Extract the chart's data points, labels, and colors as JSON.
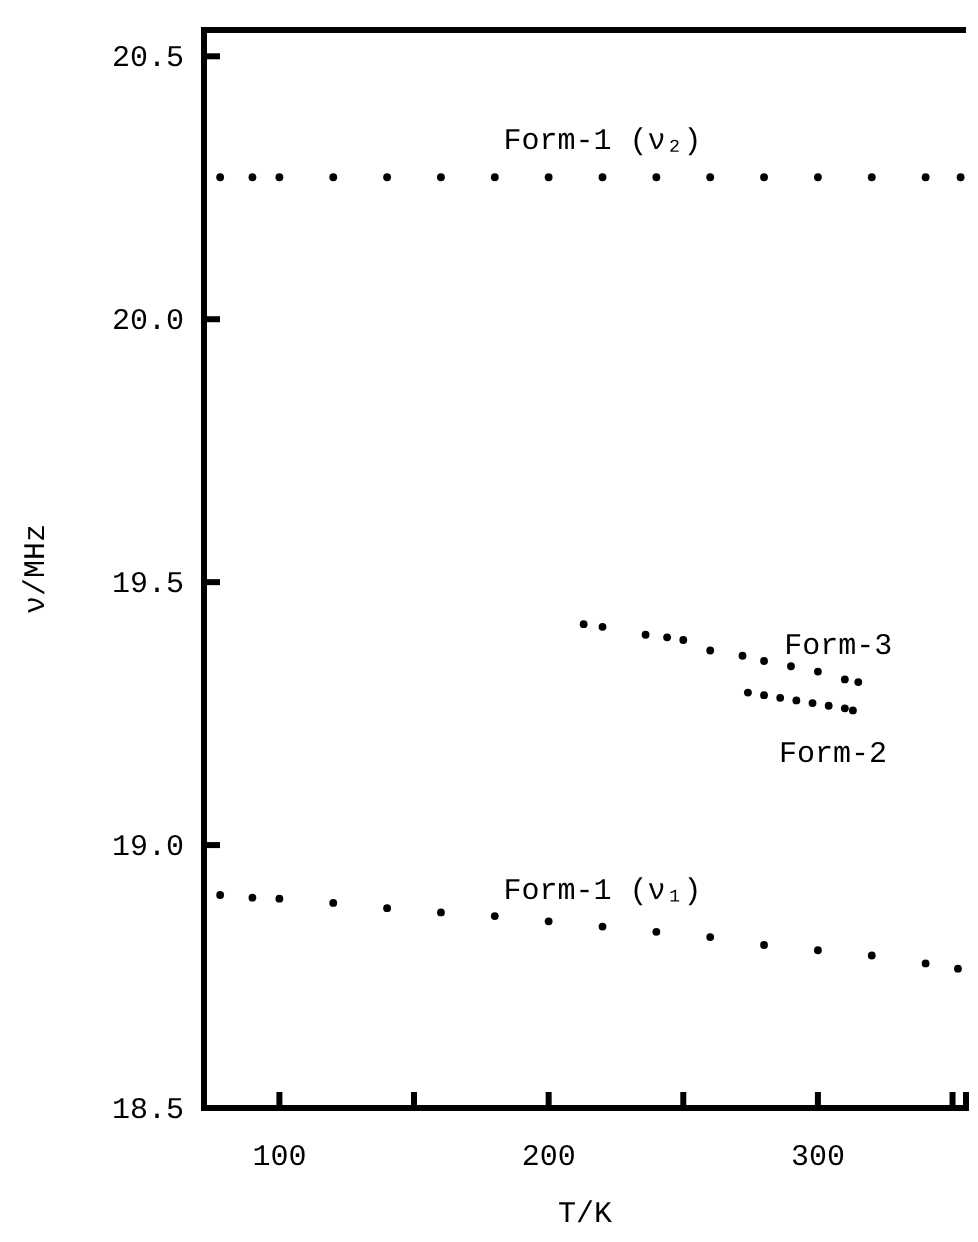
{
  "chart_data": {
    "type": "scatter",
    "xlabel": "T/K",
    "ylabel": "ν/MHz",
    "marker": "circle",
    "xlim": [
      72,
      355
    ],
    "xticks": [
      100,
      {
        "value": 150,
        "label": null
      },
      200,
      {
        "value": 250,
        "label": null
      },
      300,
      {
        "value": 350,
        "label": null
      }
    ],
    "ylim": [
      18.5,
      20.55
    ],
    "yticks": [
      18.5,
      {
        "value": 19,
        "label": "19.0"
      },
      19.5,
      {
        "value": 20,
        "label": "20.0"
      },
      20.5
    ],
    "series": [
      {
        "name": "Form-1 (ν₂)",
        "color": "#000000",
        "x": [
          78,
          90,
          100,
          120,
          140,
          160,
          180,
          200,
          220,
          240,
          260,
          280,
          300,
          320,
          340,
          353
        ],
        "values": [
          20.27,
          20.27,
          20.27,
          20.27,
          20.27,
          20.27,
          20.27,
          20.27,
          20.27,
          20.27,
          20.27,
          20.27,
          20.27,
          20.27,
          20.27,
          20.27
        ]
      },
      {
        "name": "Form-1 (ν₁)",
        "color": "#000000",
        "x": [
          78,
          90,
          100,
          120,
          140,
          160,
          180,
          200,
          220,
          240,
          260,
          280,
          300,
          320,
          340,
          352
        ],
        "values": [
          18.905,
          18.9,
          18.898,
          18.89,
          18.88,
          18.872,
          18.865,
          18.855,
          18.845,
          18.835,
          18.825,
          18.81,
          18.8,
          18.79,
          18.775,
          18.765
        ]
      },
      {
        "name": "Form-3",
        "color": "#000000",
        "x": [
          213,
          220,
          236,
          244,
          250,
          260,
          272,
          280,
          290,
          300,
          310,
          315
        ],
        "values": [
          19.42,
          19.415,
          19.4,
          19.395,
          19.39,
          19.37,
          19.36,
          19.35,
          19.34,
          19.33,
          19.315,
          19.31
        ]
      },
      {
        "name": "Form-2",
        "color": "#000000",
        "x": [
          274,
          280,
          286,
          292,
          298,
          304,
          310,
          313
        ],
        "values": [
          19.29,
          19.285,
          19.28,
          19.275,
          19.27,
          19.265,
          19.26,
          19.256
        ]
      }
    ]
  }
}
